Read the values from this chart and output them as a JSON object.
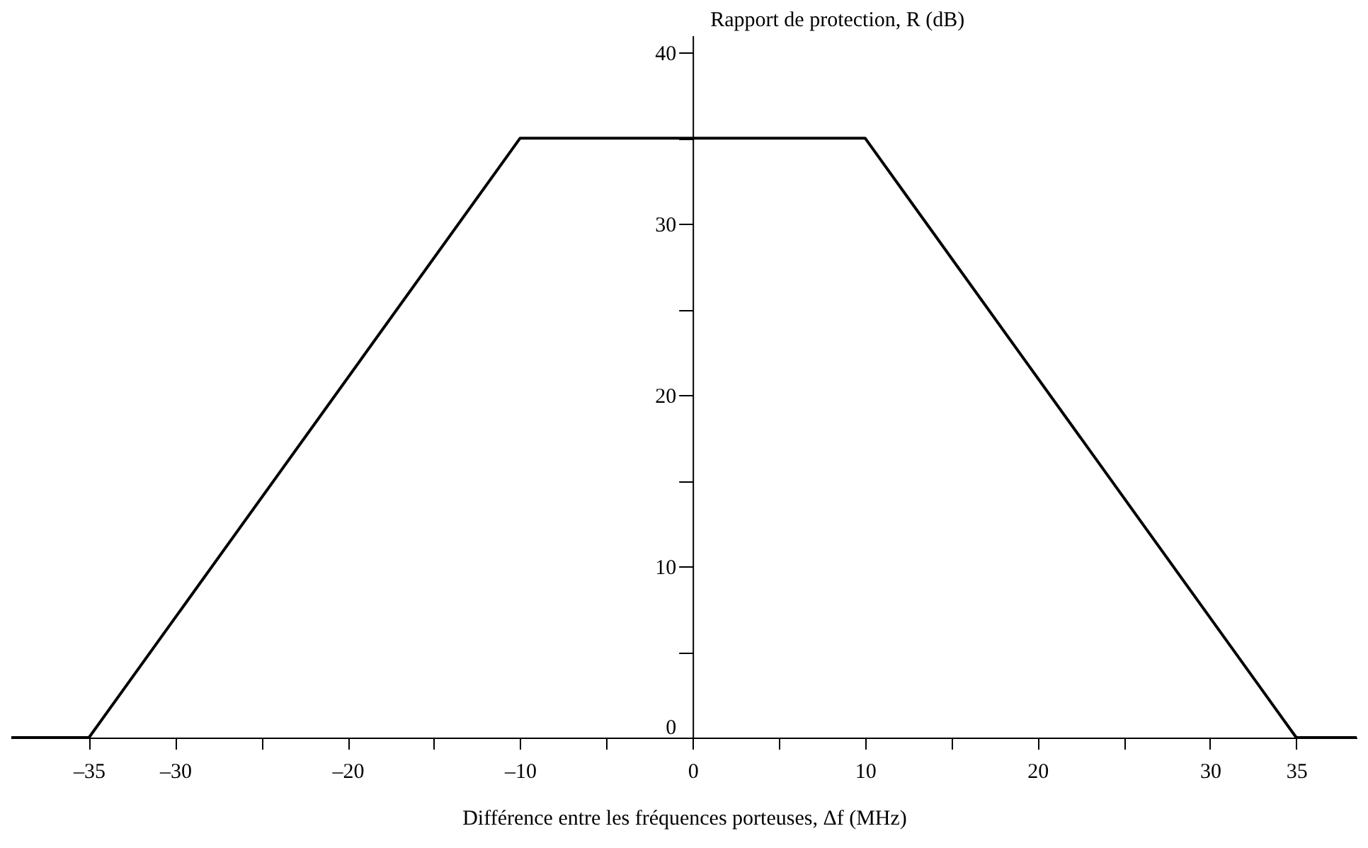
{
  "chart_data": {
    "type": "line",
    "xlabel": "Différence entre les fréquences porteuses, Δf (MHz)",
    "ylabel": "Rapport de protection, R (dB)",
    "x": [
      -39.5,
      -35,
      -10,
      10,
      35,
      38.5
    ],
    "series": [
      {
        "color": "#000000",
        "values": [
          0,
          0,
          35,
          35,
          0,
          0
        ]
      }
    ],
    "xlim": [
      -39.5,
      38.5
    ],
    "xticks": [
      {
        "value": -35,
        "label": "–35"
      },
      {
        "value": -30,
        "label": "–30"
      },
      {
        "value": -25,
        "label": null
      },
      {
        "value": -20,
        "label": "–20"
      },
      {
        "value": -15,
        "label": null
      },
      {
        "value": -10,
        "label": "–10"
      },
      {
        "value": -5,
        "label": null
      },
      0,
      {
        "value": 5,
        "label": null
      },
      10,
      {
        "value": 15,
        "label": null
      },
      20,
      {
        "value": 25,
        "label": null
      },
      30,
      35
    ],
    "ylim": [
      0,
      41
    ],
    "yticks": [
      0,
      {
        "value": 5,
        "label": null
      },
      10,
      {
        "value": 15,
        "label": null
      },
      20,
      {
        "value": 25,
        "label": null
      },
      30,
      {
        "value": 35,
        "label": null
      },
      40
    ],
    "grid": false,
    "legend": false,
    "marker": "none",
    "line_style": "solid"
  }
}
